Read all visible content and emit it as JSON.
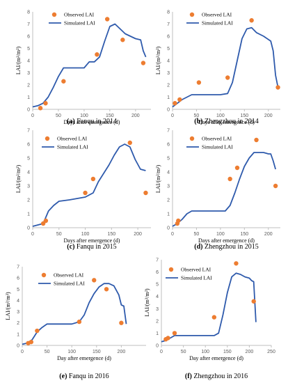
{
  "chart_data": [
    {
      "type": "scatter",
      "caption_letter": "(a)",
      "caption_text": " Fanqu in 2014",
      "xlabel": "Days after emergence (d)",
      "ylabel": "LAI/(m²/m²)",
      "xlim": [
        0,
        230
      ],
      "ylim": [
        0,
        8
      ],
      "xticks": [
        0,
        50,
        100,
        150,
        200
      ],
      "yticks": [
        0,
        1,
        2,
        3,
        4,
        5,
        6,
        7,
        8
      ],
      "legend": [
        "Observed LAI",
        "Simulated LAI"
      ],
      "observed": {
        "x": [
          15,
          25,
          60,
          125,
          145,
          175,
          215
        ],
        "y": [
          0.1,
          0.5,
          2.3,
          4.5,
          7.4,
          5.7,
          3.8
        ]
      },
      "simulated": {
        "x": [
          0,
          10,
          20,
          30,
          40,
          50,
          60,
          100,
          110,
          120,
          130,
          140,
          150,
          160,
          170,
          180,
          190,
          200,
          210,
          215,
          220
        ],
        "y": [
          0.2,
          0.3,
          0.5,
          1.0,
          1.8,
          2.7,
          3.4,
          3.4,
          3.9,
          3.9,
          4.3,
          5.6,
          6.8,
          7.0,
          6.6,
          6.2,
          6.0,
          5.8,
          5.7,
          4.8,
          4.3
        ]
      }
    },
    {
      "type": "scatter",
      "caption_letter": "(b)",
      "caption_text": " Zhengzhou in 2014",
      "xlabel": "Days after emergence (d)",
      "ylabel": "LAI/(m²/m²)",
      "xlim": [
        0,
        225
      ],
      "ylim": [
        0,
        8
      ],
      "xticks": [
        0,
        50,
        100,
        150,
        200
      ],
      "yticks": [
        0,
        1,
        2,
        3,
        4,
        5,
        6,
        7,
        8
      ],
      "legend": [
        "Observed LAI",
        "Simulated LAI"
      ],
      "observed": {
        "x": [
          5,
          15,
          55,
          115,
          165,
          220
        ],
        "y": [
          0.5,
          0.8,
          2.2,
          2.6,
          7.3,
          1.8
        ]
      },
      "simulated": {
        "x": [
          0,
          10,
          20,
          30,
          40,
          100,
          115,
          125,
          135,
          145,
          155,
          165,
          175,
          190,
          205,
          210,
          215,
          220
        ],
        "y": [
          0.2,
          0.5,
          0.8,
          1.0,
          1.2,
          1.2,
          1.3,
          2.2,
          4.0,
          5.8,
          6.6,
          6.7,
          6.3,
          6.0,
          5.6,
          4.8,
          2.8,
          1.8
        ]
      }
    },
    {
      "type": "scatter",
      "caption_letter": "(c)",
      "caption_text": " Fanqu in 2015",
      "xlabel": "Days after emergence (d)",
      "ylabel": "LAI/(m²/m²)",
      "xlim": [
        0,
        225
      ],
      "ylim": [
        0,
        7
      ],
      "xticks": [
        0,
        50,
        100,
        150,
        200
      ],
      "yticks": [
        0,
        1,
        2,
        3,
        4,
        5,
        6,
        7
      ],
      "legend": [
        "Observed LAI",
        "Simulated LAI"
      ],
      "observed": {
        "x": [
          20,
          25,
          100,
          115,
          185,
          215
        ],
        "y": [
          0.3,
          0.5,
          2.5,
          3.5,
          6.1,
          2.5
        ]
      },
      "simulated": {
        "x": [
          0,
          10,
          20,
          30,
          40,
          50,
          70,
          100,
          115,
          125,
          135,
          145,
          155,
          165,
          175,
          185,
          195,
          205,
          215
        ],
        "y": [
          0.1,
          0.2,
          0.3,
          1.2,
          1.6,
          1.9,
          2.0,
          2.2,
          2.5,
          3.3,
          3.9,
          4.5,
          5.2,
          5.8,
          6.0,
          5.8,
          4.9,
          4.2,
          4.1
        ]
      }
    },
    {
      "type": "scatter",
      "caption_letter": "(d)",
      "caption_text": " Zhengzhou in 2015",
      "xlabel": "Days after emergence (d)",
      "ylabel": "LAI/(m²/m²)",
      "xlim": [
        0,
        225
      ],
      "ylim": [
        0,
        7
      ],
      "xticks": [
        0,
        50,
        100,
        150,
        200
      ],
      "yticks": [
        0,
        1,
        2,
        3,
        4,
        5,
        6,
        7
      ],
      "legend": [
        "Observed LAI",
        "Simulated LAI"
      ],
      "observed": {
        "x": [
          10,
          12,
          120,
          135,
          175,
          215
        ],
        "y": [
          0.3,
          0.5,
          3.5,
          4.3,
          6.3,
          3.0
        ]
      },
      "simulated": {
        "x": [
          0,
          10,
          20,
          30,
          40,
          110,
          120,
          130,
          140,
          150,
          160,
          170,
          180,
          190,
          200,
          205,
          210,
          215
        ],
        "y": [
          0.1,
          0.3,
          0.6,
          1.0,
          1.2,
          1.2,
          1.6,
          2.5,
          3.5,
          4.4,
          5.0,
          5.4,
          5.4,
          5.4,
          5.3,
          5.3,
          4.8,
          4.2
        ]
      }
    },
    {
      "type": "scatter",
      "caption_letter": "(e)",
      "caption_text": " Fanqu in 2016",
      "xlabel": "Day after emergence (d)",
      "ylabel": "LAI/(m²/m²)",
      "xlim": [
        0,
        250
      ],
      "ylim": [
        0,
        7
      ],
      "xticks": [
        0,
        50,
        100,
        150,
        200
      ],
      "yticks": [
        0,
        1,
        2,
        3,
        4,
        5,
        6,
        7
      ],
      "legend": [
        "Observed LAI",
        "Simulated LAI"
      ],
      "observed": {
        "x": [
          12,
          18,
          30,
          115,
          145,
          170,
          200
        ],
        "y": [
          0.2,
          0.3,
          1.3,
          2.1,
          5.8,
          5.0,
          2.0
        ]
      },
      "simulated": {
        "x": [
          0,
          10,
          20,
          30,
          40,
          50,
          100,
          115,
          125,
          135,
          145,
          155,
          165,
          175,
          185,
          195,
          200,
          205,
          210
        ],
        "y": [
          0.1,
          0.2,
          0.5,
          1.2,
          1.6,
          1.9,
          1.9,
          2.1,
          2.7,
          3.8,
          4.6,
          5.2,
          5.5,
          5.5,
          5.3,
          4.5,
          3.6,
          3.5,
          1.9
        ]
      }
    },
    {
      "type": "scatter",
      "caption_letter": "(f)",
      "caption_text": " Zhengzhou in 2016",
      "xlabel": "Day after emergence (d)",
      "ylabel": "LAI/(m²/m²)",
      "xlim": [
        0,
        250
      ],
      "ylim": [
        0,
        7
      ],
      "xticks": [
        0,
        50,
        100,
        150,
        200,
        250
      ],
      "yticks": [
        0,
        1,
        2,
        3,
        4,
        5,
        6,
        7
      ],
      "legend": [
        "Observed LAI",
        "Simulated LAI"
      ],
      "observed": {
        "x": [
          10,
          15,
          30,
          120,
          170,
          210
        ],
        "y": [
          0.5,
          0.6,
          1.0,
          2.3,
          6.7,
          3.6
        ]
      },
      "simulated": {
        "x": [
          0,
          10,
          20,
          30,
          40,
          120,
          130,
          140,
          150,
          160,
          170,
          180,
          190,
          200,
          205,
          210,
          215
        ],
        "y": [
          0.3,
          0.4,
          0.6,
          0.8,
          0.8,
          0.8,
          1.0,
          2.5,
          4.3,
          5.6,
          5.9,
          5.8,
          5.6,
          5.5,
          5.3,
          5.2,
          1.9
        ]
      }
    }
  ],
  "colors": {
    "observed": "#ED7D31",
    "simulated": "#2E5AAC",
    "axis": "#595959"
  }
}
